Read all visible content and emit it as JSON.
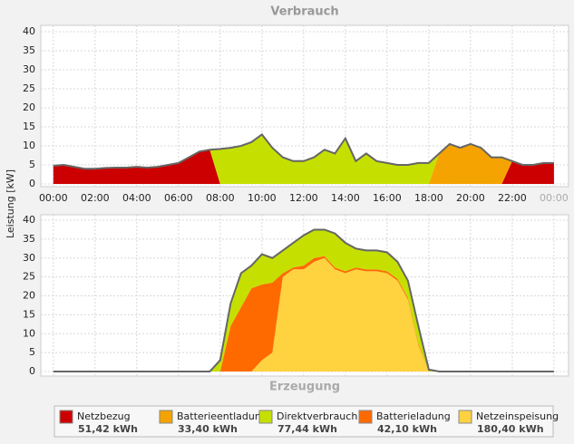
{
  "chart_data": [
    {
      "type": "area",
      "title": "Verbrauch",
      "ylabel": "Leistung [kW]",
      "x": [
        0,
        0.5,
        1,
        1.5,
        2,
        2.5,
        3,
        3.5,
        4,
        4.5,
        5,
        5.5,
        6,
        6.5,
        7,
        7.5,
        8,
        8.5,
        9,
        9.5,
        10,
        10.5,
        11,
        11.5,
        12,
        12.5,
        13,
        13.5,
        14,
        14.5,
        15,
        15.5,
        16,
        16.5,
        17,
        17.5,
        18,
        18.5,
        19,
        19.5,
        20,
        20.5,
        21,
        21.5,
        22,
        22.5,
        23,
        23.5,
        24
      ],
      "xlim": [
        -0.6,
        24.7
      ],
      "xticks": [
        {
          "value": 0,
          "label": "00:00"
        },
        {
          "value": 2,
          "label": "02:00"
        },
        {
          "value": 4,
          "label": "04:00"
        },
        {
          "value": 6,
          "label": "06:00"
        },
        {
          "value": 8,
          "label": "08:00"
        },
        {
          "value": 10,
          "label": "10:00"
        },
        {
          "value": 12,
          "label": "12:00"
        },
        {
          "value": 14,
          "label": "14:00"
        },
        {
          "value": 16,
          "label": "16:00"
        },
        {
          "value": 18,
          "label": "18:00"
        },
        {
          "value": 20,
          "label": "20:00"
        },
        {
          "value": 22,
          "label": "22:00"
        },
        {
          "value": 24,
          "label": "00:00"
        }
      ],
      "ylim": [
        0,
        40
      ],
      "yticks": [
        0,
        5,
        10,
        15,
        20,
        25,
        30,
        35,
        40
      ],
      "grid": true,
      "series": [
        {
          "name": "Netzbezug",
          "color": "#cc0000",
          "values": [
            4.8,
            5,
            4.5,
            4,
            4,
            4.2,
            4.3,
            4.3,
            4.5,
            4.3,
            4.5,
            5,
            5.5,
            7,
            8.5,
            9,
            0,
            0,
            0,
            0,
            0,
            0,
            0,
            0,
            0,
            0,
            0,
            0,
            0,
            0,
            0,
            0,
            0,
            0,
            0,
            0,
            0,
            0,
            0,
            0,
            0,
            0,
            0,
            0,
            6,
            5,
            5,
            5.5,
            5.5
          ]
        },
        {
          "name": "Batterieentladung",
          "color": "#f5a300",
          "values": [
            0,
            0,
            0,
            0,
            0,
            0,
            0,
            0,
            0,
            0,
            0,
            0,
            0,
            0,
            0,
            0,
            0,
            0,
            0,
            0,
            0,
            0,
            0,
            0,
            0,
            0,
            0,
            0,
            0,
            0,
            0,
            0,
            0,
            0,
            0,
            0,
            0,
            8,
            10.5,
            9.5,
            10.5,
            9.5,
            7,
            7,
            0,
            0,
            0,
            0,
            0
          ]
        },
        {
          "name": "Direktverbrauch",
          "color": "#c5e000",
          "values": [
            0,
            0,
            0,
            0,
            0,
            0,
            0,
            0,
            0,
            0,
            0,
            0,
            0,
            0,
            0,
            0,
            9.2,
            9.5,
            10,
            11,
            13,
            9.5,
            7,
            6,
            6,
            7,
            9,
            8,
            12,
            6,
            8,
            6,
            5.5,
            5,
            5,
            5.5,
            5.5,
            0,
            0,
            0,
            0,
            0,
            0,
            0,
            0,
            0,
            0,
            0,
            0
          ]
        }
      ]
    },
    {
      "type": "area",
      "title": "Erzeugung",
      "x": [
        0,
        0.5,
        1,
        1.5,
        2,
        2.5,
        3,
        3.5,
        4,
        4.5,
        5,
        5.5,
        6,
        6.5,
        7,
        7.5,
        8,
        8.5,
        9,
        9.5,
        10,
        10.5,
        11,
        11.5,
        12,
        12.5,
        13,
        13.5,
        14,
        14.5,
        15,
        15.5,
        16,
        16.5,
        17,
        17.5,
        18,
        18.5,
        19,
        19.5,
        20,
        20.5,
        21,
        21.5,
        22,
        22.5,
        23,
        23.5,
        24
      ],
      "xlim": [
        -0.6,
        24.7
      ],
      "ylim": [
        0,
        40
      ],
      "yticks": [
        0,
        5,
        10,
        15,
        20,
        25,
        30,
        35,
        40
      ],
      "grid": true,
      "series": [
        {
          "name": "Netzeinspeisung",
          "color": "#ffd23f",
          "values": [
            0,
            0,
            0,
            0,
            0,
            0,
            0,
            0,
            0,
            0,
            0,
            0,
            0,
            0,
            0,
            0,
            0,
            0,
            0,
            0,
            3,
            5,
            25,
            27,
            27,
            29,
            30,
            27,
            26,
            27,
            26.5,
            26.5,
            26,
            24,
            19,
            7,
            0,
            0,
            0,
            0,
            0,
            0,
            0,
            0,
            0,
            0,
            0,
            0,
            0
          ]
        },
        {
          "name": "Batterieladung",
          "color": "#ff6a00",
          "values": [
            0,
            0,
            0,
            0,
            0,
            0,
            0,
            0,
            0,
            0,
            0,
            0,
            0,
            0,
            0,
            0,
            0,
            12,
            17,
            22,
            20,
            18.5,
            1,
            0.5,
            1,
            1,
            0.5,
            0.5,
            0.5,
            0.5,
            0.5,
            0.5,
            0.5,
            0.5,
            0.5,
            0.5,
            0,
            0,
            0,
            0,
            0,
            0,
            0,
            0,
            0,
            0,
            0,
            0,
            0
          ]
        },
        {
          "name": "Direktverbrauch",
          "color": "#c5e000",
          "values": [
            0,
            0,
            0,
            0,
            0,
            0,
            0,
            0,
            0,
            0,
            0,
            0,
            0,
            0,
            0,
            0,
            3,
            6,
            9,
            6,
            8,
            6.5,
            6,
            6.5,
            8,
            7.5,
            7,
            9,
            7.5,
            5,
            5,
            5,
            5,
            4.5,
            4.5,
            4.5,
            0.5,
            0,
            0,
            0,
            0,
            0,
            0,
            0,
            0,
            0,
            0,
            0,
            0
          ]
        }
      ]
    }
  ],
  "legend": [
    {
      "name": "Netzbezug",
      "color": "#cc0000",
      "total": "51,42 kWh"
    },
    {
      "name": "Batterieentladung",
      "color": "#f5a300",
      "total": "33,40 kWh"
    },
    {
      "name": "Direktverbrauch",
      "color": "#c5e000",
      "total": "77,44 kWh"
    },
    {
      "name": "Batterieladung",
      "color": "#ff6a00",
      "total": "42,10 kWh"
    },
    {
      "name": "Netzeinspeisung",
      "color": "#ffd23f",
      "total": "180,40 kWh"
    }
  ]
}
